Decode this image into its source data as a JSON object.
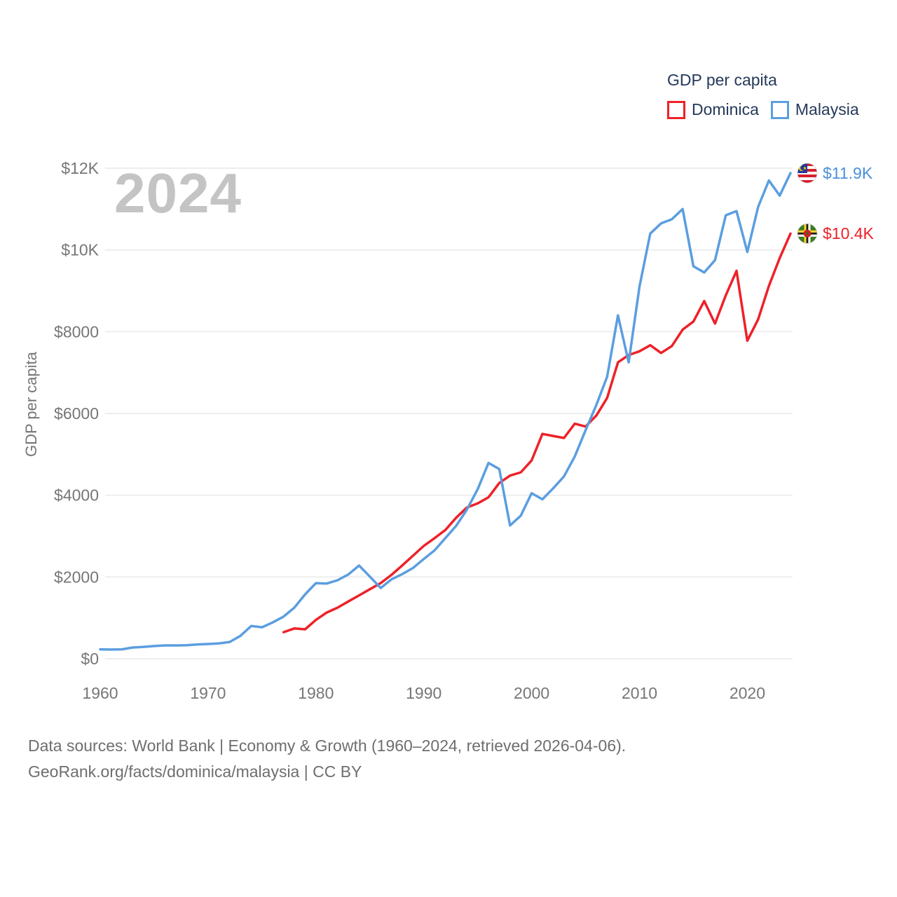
{
  "watermark": "2024",
  "legend": {
    "title": "GDP per capita",
    "items": [
      {
        "label": "Dominica",
        "color": "#ee2128"
      },
      {
        "label": "Malaysia",
        "color": "#5b9ee0"
      }
    ]
  },
  "y_axis": {
    "title": "GDP per capita",
    "ticks": [
      {
        "value": 0,
        "label": "$0"
      },
      {
        "value": 2000,
        "label": "$2000"
      },
      {
        "value": 4000,
        "label": "$4000"
      },
      {
        "value": 6000,
        "label": "$6000"
      },
      {
        "value": 8000,
        "label": "$8000"
      },
      {
        "value": 10000,
        "label": "$10K"
      },
      {
        "value": 12000,
        "label": "$12K"
      }
    ]
  },
  "x_axis": {
    "ticks": [
      {
        "value": 1960,
        "label": "1960"
      },
      {
        "value": 1970,
        "label": "1970"
      },
      {
        "value": 1980,
        "label": "1980"
      },
      {
        "value": 1990,
        "label": "1990"
      },
      {
        "value": 2000,
        "label": "2000"
      },
      {
        "value": 2010,
        "label": "2010"
      },
      {
        "value": 2020,
        "label": "2020"
      }
    ]
  },
  "footer": {
    "line1": "Data sources: World Bank | Economy & Growth (1960–2024, retrieved 2026-04-06).",
    "line2": "GeoRank.org/facts/dominica/malaysia | CC BY"
  },
  "chart_data": {
    "type": "line",
    "title": "GDP per capita",
    "ylabel": "GDP per capita",
    "xlabel": "",
    "x_range": [
      1960,
      2024
    ],
    "ylim": [
      0,
      12000
    ],
    "grid": "horizontal",
    "legend_position": "top-right",
    "series": [
      {
        "name": "Dominica",
        "color": "#ee2128",
        "flag": "dominica",
        "start_year": 1977,
        "end_label": "$10.4K",
        "end_label_color": "#ee2128",
        "values": [
          650,
          740,
          720,
          950,
          1130,
          1250,
          1400,
          1550,
          1700,
          1850,
          2050,
          2280,
          2520,
          2760,
          2950,
          3150,
          3450,
          3700,
          3800,
          3950,
          4300,
          4480,
          4560,
          4850,
          5500,
          5450,
          5400,
          5750,
          5680,
          5950,
          6380,
          7250,
          7430,
          7520,
          7670,
          7480,
          7650,
          8050,
          8250,
          8750,
          8200,
          8890,
          9490,
          7780,
          8300,
          9120,
          9800,
          10400
        ]
      },
      {
        "name": "Malaysia",
        "color": "#5b9ee0",
        "flag": "malaysia",
        "start_year": 1960,
        "end_label": "$11.9K",
        "end_label_color": "#4a90d9",
        "values": [
          230,
          225,
          230,
          275,
          290,
          310,
          325,
          325,
          330,
          350,
          360,
          375,
          410,
          560,
          800,
          770,
          890,
          1030,
          1250,
          1575,
          1850,
          1840,
          1920,
          2060,
          2280,
          2010,
          1730,
          1940,
          2070,
          2220,
          2440,
          2650,
          2950,
          3250,
          3650,
          4150,
          4790,
          4640,
          3260,
          3500,
          4050,
          3900,
          4170,
          4460,
          4950,
          5590,
          6210,
          6900,
          8400,
          7250,
          9100,
          10400,
          10650,
          10750,
          11000,
          9600,
          9450,
          9750,
          10850,
          10950,
          9950,
          11050,
          11700,
          11330,
          11880
        ]
      }
    ]
  }
}
